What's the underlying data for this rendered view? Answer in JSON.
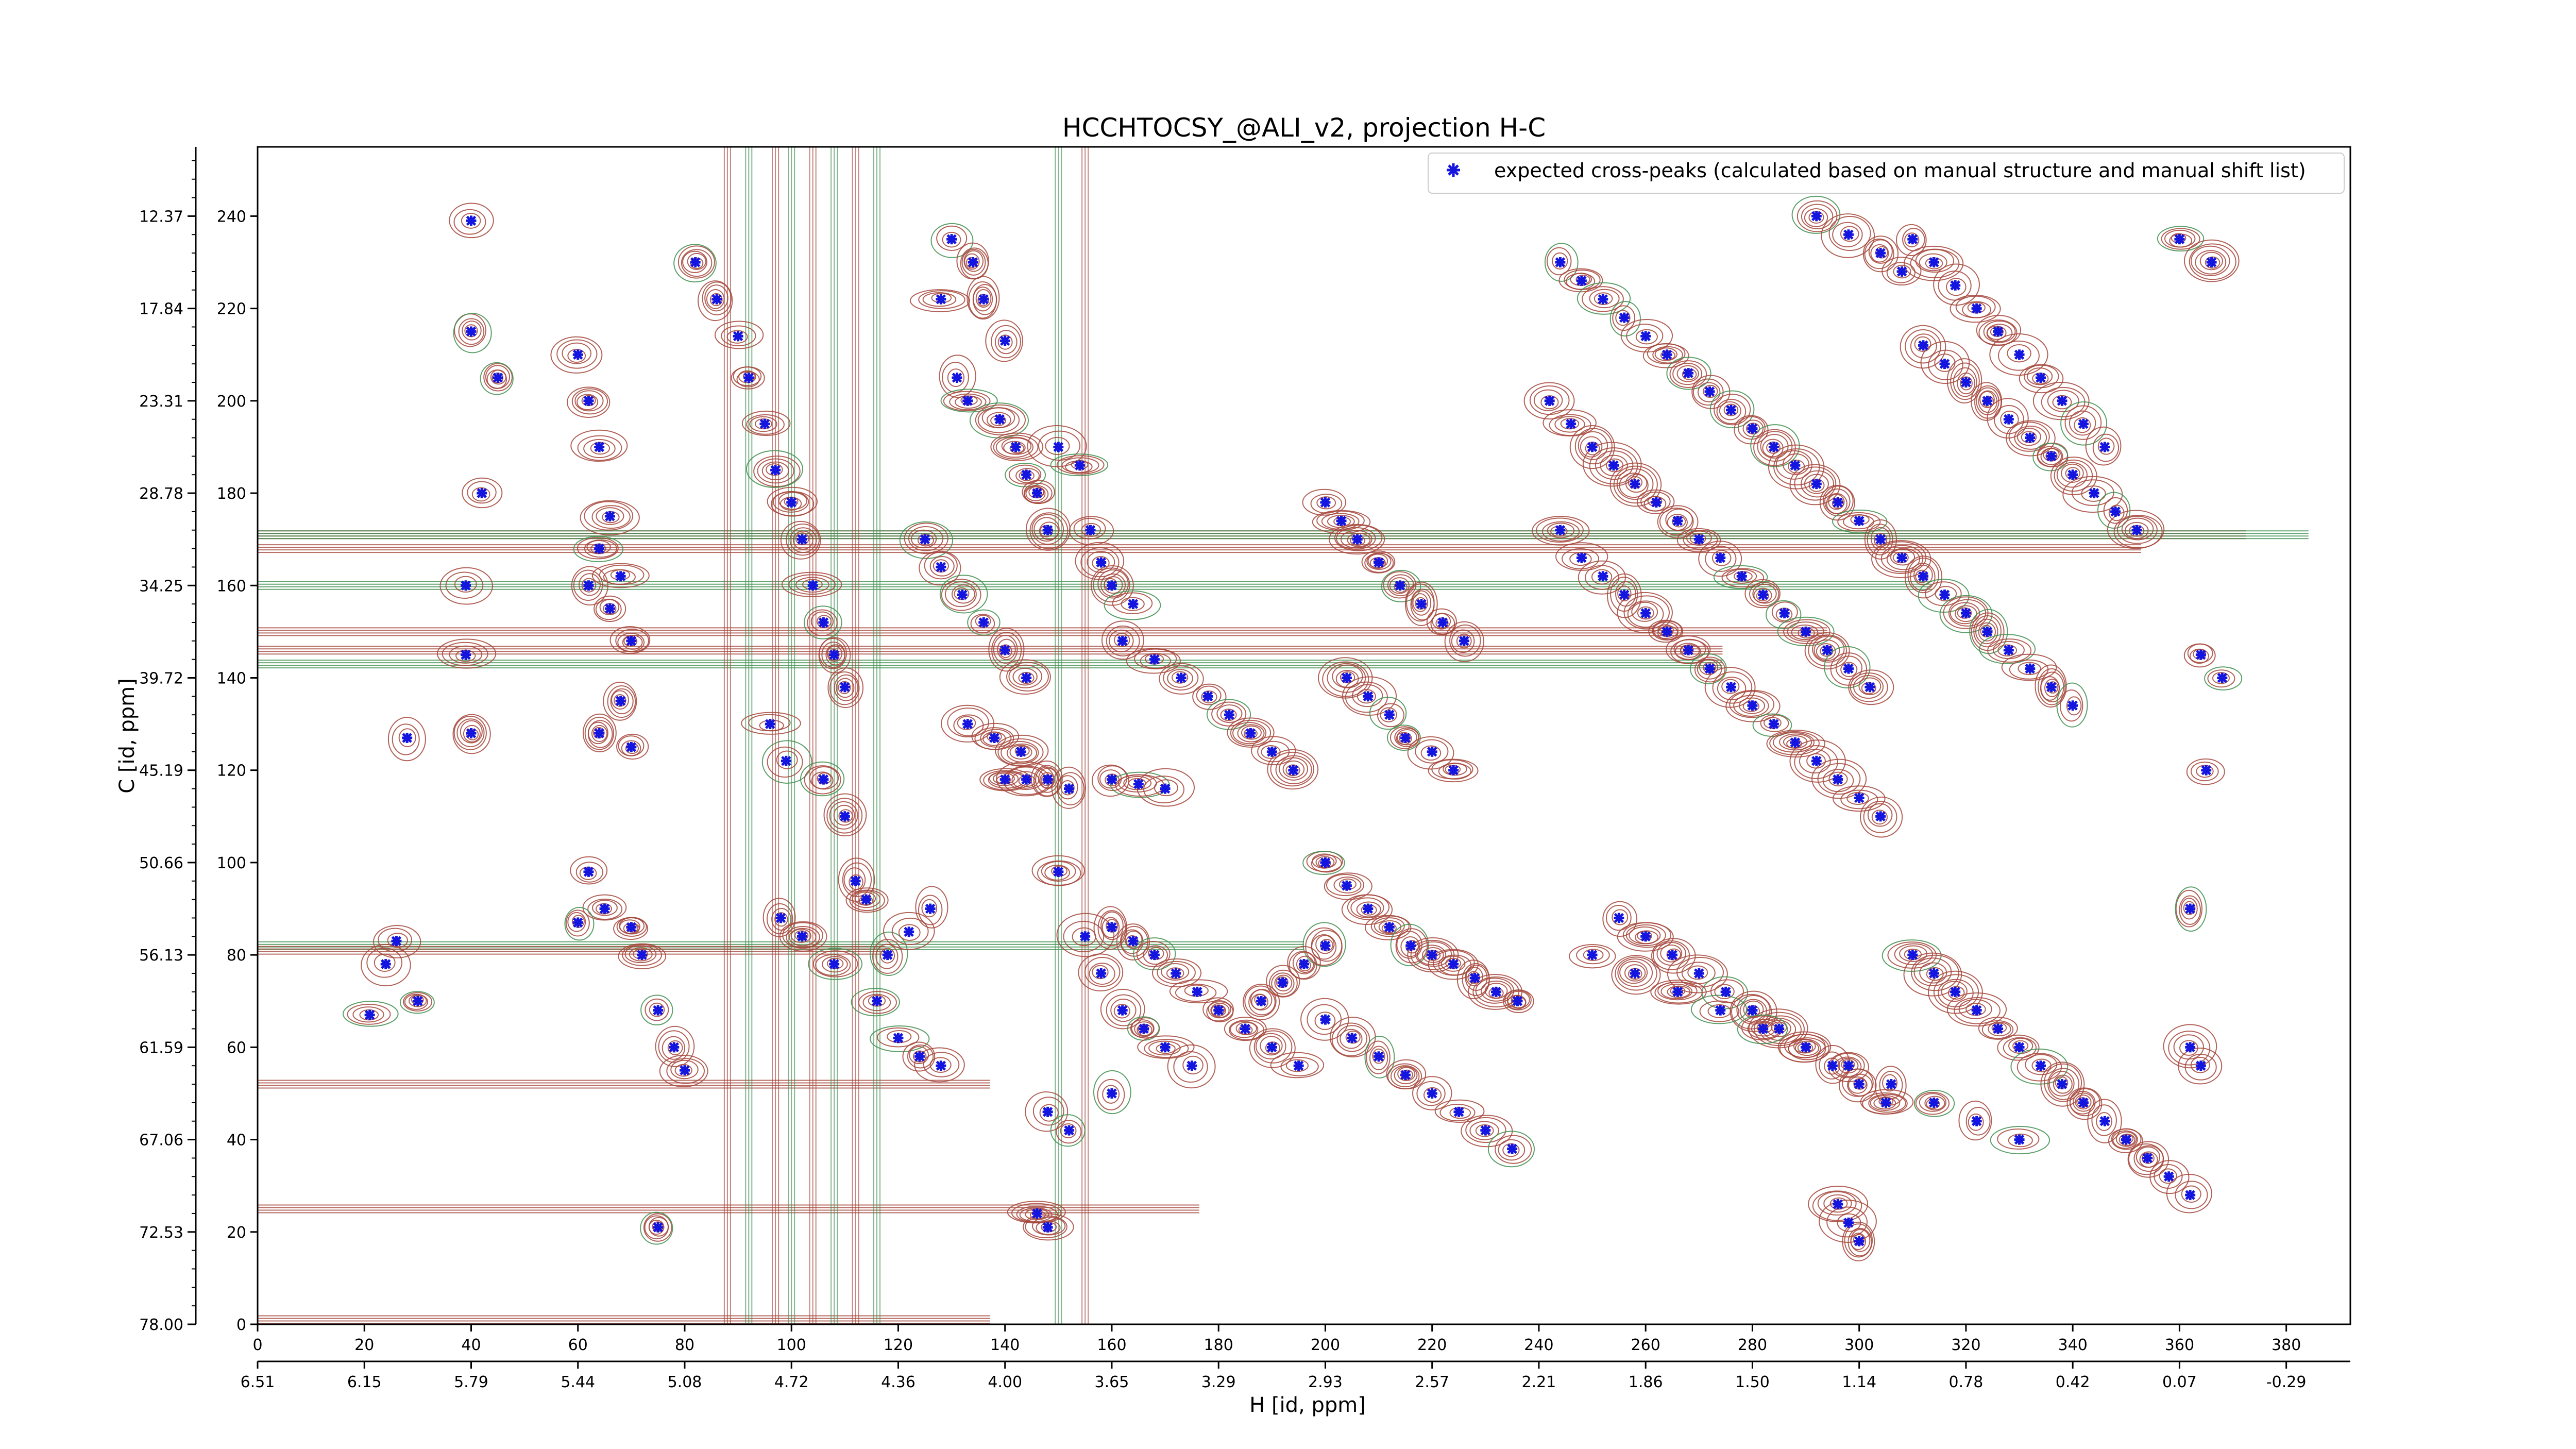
{
  "chart_data": {
    "type": "scatter",
    "title": "HCCHTOCSY_@ALI_v2, projection H-C",
    "xlabel": "H [id, ppm]",
    "ylabel": "C [id, ppm]",
    "xlim": [
      0,
      392
    ],
    "ylim": [
      0,
      255
    ],
    "x_ticks_index": [
      "0",
      "20",
      "40",
      "60",
      "80",
      "100",
      "120",
      "140",
      "160",
      "180",
      "200",
      "220",
      "240",
      "260",
      "280",
      "300",
      "320",
      "340",
      "360",
      "380"
    ],
    "x_ticks_ppm": [
      "6.51",
      "6.15",
      "5.79",
      "5.44",
      "5.08",
      "4.72",
      "4.36",
      "4.00",
      "3.65",
      "3.29",
      "2.93",
      "2.57",
      "2.21",
      "1.86",
      "1.50",
      "1.14",
      "0.78",
      "0.42",
      "0.07",
      "-0.29"
    ],
    "y_ticks_index": [
      "0",
      "20",
      "40",
      "60",
      "80",
      "100",
      "120",
      "140",
      "160",
      "180",
      "200",
      "220",
      "240"
    ],
    "y_ticks_ppm": [
      "78.00",
      "72.53",
      "67.06",
      "61.59",
      "56.13",
      "50.66",
      "45.19",
      "39.72",
      "34.25",
      "28.78",
      "23.31",
      "17.84",
      "12.37"
    ],
    "legend": {
      "label": "expected cross-peaks (calculated based on manual structure and manual shift list)",
      "placement": "upper right"
    },
    "colors": {
      "contour_positive": "#a5473b",
      "contour_negative": "#3f8f4f",
      "marker": "#1515e0"
    },
    "series": [
      {
        "name": "expected cross-peaks (calculated based on manual structure and manual shift list)",
        "marker": "x",
        "points": [
          [
            40,
            239
          ],
          [
            40,
            215
          ],
          [
            45,
            205
          ],
          [
            42,
            180
          ],
          [
            39,
            160
          ],
          [
            39,
            145
          ],
          [
            40,
            128
          ],
          [
            28,
            127
          ],
          [
            26,
            83
          ],
          [
            24,
            78
          ],
          [
            21,
            67
          ],
          [
            30,
            70
          ],
          [
            60,
            210
          ],
          [
            62,
            200
          ],
          [
            64,
            190
          ],
          [
            66,
            175
          ],
          [
            64,
            168
          ],
          [
            62,
            160
          ],
          [
            66,
            155
          ],
          [
            68,
            162
          ],
          [
            70,
            148
          ],
          [
            68,
            135
          ],
          [
            64,
            128
          ],
          [
            70,
            125
          ],
          [
            62,
            98
          ],
          [
            65,
            90
          ],
          [
            60,
            87
          ],
          [
            70,
            86
          ],
          [
            72,
            80
          ],
          [
            75,
            68
          ],
          [
            78,
            60
          ],
          [
            80,
            55
          ],
          [
            75,
            21
          ],
          [
            82,
            230
          ],
          [
            86,
            222
          ],
          [
            90,
            214
          ],
          [
            92,
            205
          ],
          [
            95,
            195
          ],
          [
            97,
            185
          ],
          [
            100,
            178
          ],
          [
            102,
            170
          ],
          [
            104,
            160
          ],
          [
            106,
            152
          ],
          [
            108,
            145
          ],
          [
            110,
            138
          ],
          [
            96,
            130
          ],
          [
            99,
            122
          ],
          [
            106,
            118
          ],
          [
            110,
            110
          ],
          [
            112,
            96
          ],
          [
            114,
            92
          ],
          [
            98,
            88
          ],
          [
            102,
            84
          ],
          [
            108,
            78
          ],
          [
            116,
            70
          ],
          [
            120,
            62
          ],
          [
            124,
            58
          ],
          [
            128,
            56
          ],
          [
            118,
            80
          ],
          [
            122,
            85
          ],
          [
            126,
            90
          ],
          [
            130,
            235
          ],
          [
            134,
            230
          ],
          [
            136,
            222
          ],
          [
            140,
            213
          ],
          [
            128,
            222
          ],
          [
            131,
            205
          ],
          [
            133,
            200
          ],
          [
            139,
            196
          ],
          [
            142,
            190
          ],
          [
            144,
            184
          ],
          [
            146,
            180
          ],
          [
            148,
            172
          ],
          [
            125,
            170
          ],
          [
            128,
            164
          ],
          [
            132,
            158
          ],
          [
            136,
            152
          ],
          [
            140,
            146
          ],
          [
            144,
            140
          ],
          [
            133,
            130
          ],
          [
            138,
            127
          ],
          [
            143,
            124
          ],
          [
            140,
            118
          ],
          [
            144,
            118
          ],
          [
            148,
            118
          ],
          [
            152,
            116
          ],
          [
            160,
            118
          ],
          [
            165,
            117
          ],
          [
            170,
            116
          ],
          [
            150,
            190
          ],
          [
            154,
            186
          ],
          [
            156,
            172
          ],
          [
            158,
            165
          ],
          [
            160,
            160
          ],
          [
            164,
            156
          ],
          [
            162,
            148
          ],
          [
            168,
            144
          ],
          [
            173,
            140
          ],
          [
            178,
            136
          ],
          [
            182,
            132
          ],
          [
            186,
            128
          ],
          [
            190,
            124
          ],
          [
            194,
            120
          ],
          [
            160,
            86
          ],
          [
            164,
            83
          ],
          [
            168,
            80
          ],
          [
            172,
            76
          ],
          [
            176,
            72
          ],
          [
            180,
            68
          ],
          [
            185,
            64
          ],
          [
            190,
            60
          ],
          [
            195,
            56
          ],
          [
            150,
            98
          ],
          [
            155,
            84
          ],
          [
            158,
            76
          ],
          [
            162,
            68
          ],
          [
            166,
            64
          ],
          [
            170,
            60
          ],
          [
            175,
            56
          ],
          [
            148,
            46
          ],
          [
            152,
            42
          ],
          [
            146,
            24
          ],
          [
            148,
            21
          ],
          [
            160,
            50
          ],
          [
            200,
            178
          ],
          [
            203,
            174
          ],
          [
            206,
            170
          ],
          [
            210,
            165
          ],
          [
            214,
            160
          ],
          [
            218,
            156
          ],
          [
            222,
            152
          ],
          [
            226,
            148
          ],
          [
            204,
            140
          ],
          [
            208,
            136
          ],
          [
            212,
            132
          ],
          [
            215,
            127
          ],
          [
            220,
            124
          ],
          [
            224,
            120
          ],
          [
            200,
            100
          ],
          [
            204,
            95
          ],
          [
            208,
            90
          ],
          [
            212,
            86
          ],
          [
            216,
            82
          ],
          [
            220,
            80
          ],
          [
            224,
            78
          ],
          [
            228,
            75
          ],
          [
            232,
            72
          ],
          [
            236,
            70
          ],
          [
            200,
            82
          ],
          [
            196,
            78
          ],
          [
            192,
            74
          ],
          [
            188,
            70
          ],
          [
            200,
            66
          ],
          [
            205,
            62
          ],
          [
            210,
            58
          ],
          [
            215,
            54
          ],
          [
            220,
            50
          ],
          [
            225,
            46
          ],
          [
            230,
            42
          ],
          [
            235,
            38
          ],
          [
            242,
            200
          ],
          [
            246,
            195
          ],
          [
            250,
            190
          ],
          [
            254,
            186
          ],
          [
            258,
            182
          ],
          [
            262,
            178
          ],
          [
            266,
            174
          ],
          [
            270,
            170
          ],
          [
            274,
            166
          ],
          [
            278,
            162
          ],
          [
            282,
            158
          ],
          [
            286,
            154
          ],
          [
            290,
            150
          ],
          [
            294,
            146
          ],
          [
            298,
            142
          ],
          [
            302,
            138
          ],
          [
            244,
            172
          ],
          [
            248,
            166
          ],
          [
            252,
            162
          ],
          [
            256,
            158
          ],
          [
            260,
            154
          ],
          [
            264,
            150
          ],
          [
            268,
            146
          ],
          [
            272,
            142
          ],
          [
            276,
            138
          ],
          [
            280,
            134
          ],
          [
            284,
            130
          ],
          [
            288,
            126
          ],
          [
            292,
            122
          ],
          [
            296,
            118
          ],
          [
            300,
            114
          ],
          [
            304,
            110
          ],
          [
            244,
            230
          ],
          [
            248,
            226
          ],
          [
            252,
            222
          ],
          [
            256,
            218
          ],
          [
            260,
            214
          ],
          [
            264,
            210
          ],
          [
            268,
            206
          ],
          [
            272,
            202
          ],
          [
            276,
            198
          ],
          [
            280,
            194
          ],
          [
            284,
            190
          ],
          [
            288,
            186
          ],
          [
            292,
            182
          ],
          [
            296,
            178
          ],
          [
            300,
            174
          ],
          [
            304,
            170
          ],
          [
            308,
            166
          ],
          [
            312,
            162
          ],
          [
            316,
            158
          ],
          [
            320,
            154
          ],
          [
            324,
            150
          ],
          [
            328,
            146
          ],
          [
            332,
            142
          ],
          [
            336,
            138
          ],
          [
            340,
            134
          ],
          [
            255,
            88
          ],
          [
            260,
            84
          ],
          [
            265,
            80
          ],
          [
            270,
            76
          ],
          [
            275,
            72
          ],
          [
            280,
            68
          ],
          [
            285,
            64
          ],
          [
            290,
            60
          ],
          [
            295,
            56
          ],
          [
            300,
            52
          ],
          [
            305,
            48
          ],
          [
            250,
            80
          ],
          [
            258,
            76
          ],
          [
            266,
            72
          ],
          [
            274,
            68
          ],
          [
            282,
            64
          ],
          [
            290,
            60
          ],
          [
            298,
            56
          ],
          [
            306,
            52
          ],
          [
            314,
            48
          ],
          [
            322,
            44
          ],
          [
            330,
            40
          ],
          [
            310,
            235
          ],
          [
            314,
            230
          ],
          [
            318,
            225
          ],
          [
            322,
            220
          ],
          [
            326,
            215
          ],
          [
            330,
            210
          ],
          [
            334,
            205
          ],
          [
            338,
            200
          ],
          [
            342,
            195
          ],
          [
            346,
            190
          ],
          [
            312,
            212
          ],
          [
            316,
            208
          ],
          [
            320,
            204
          ],
          [
            324,
            200
          ],
          [
            328,
            196
          ],
          [
            332,
            192
          ],
          [
            336,
            188
          ],
          [
            340,
            184
          ],
          [
            344,
            180
          ],
          [
            348,
            176
          ],
          [
            352,
            172
          ],
          [
            310,
            80
          ],
          [
            314,
            76
          ],
          [
            318,
            72
          ],
          [
            322,
            68
          ],
          [
            326,
            64
          ],
          [
            330,
            60
          ],
          [
            334,
            56
          ],
          [
            338,
            52
          ],
          [
            342,
            48
          ],
          [
            346,
            44
          ],
          [
            350,
            40
          ],
          [
            354,
            36
          ],
          [
            358,
            32
          ],
          [
            362,
            28
          ],
          [
            296,
            26
          ],
          [
            298,
            22
          ],
          [
            300,
            18
          ],
          [
            292,
            240
          ],
          [
            298,
            236
          ],
          [
            304,
            232
          ],
          [
            308,
            228
          ],
          [
            360,
            235
          ],
          [
            366,
            230
          ],
          [
            364,
            145
          ],
          [
            368,
            140
          ],
          [
            365,
            120
          ],
          [
            362,
            90
          ],
          [
            362,
            60
          ],
          [
            364,
            56
          ]
        ]
      }
    ]
  }
}
